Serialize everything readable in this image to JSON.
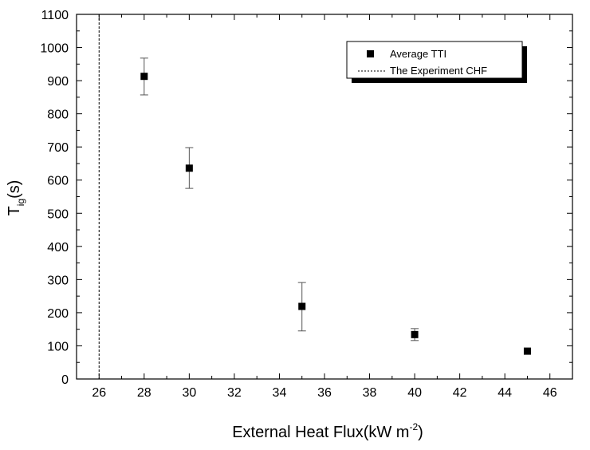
{
  "chart_data": {
    "type": "scatter",
    "xlabel": "External Heat Flux(kW m",
    "xlabel_sup": "-2",
    "xlabel_close": ")",
    "ylabel_main": "T",
    "ylabel_sub": "ig",
    "ylabel_rest": "(s)",
    "xlim": [
      25,
      47
    ],
    "ylim": [
      0,
      1100
    ],
    "x_ticks": [
      26,
      28,
      30,
      32,
      34,
      36,
      38,
      40,
      42,
      44,
      46
    ],
    "y_ticks": [
      0,
      100,
      200,
      300,
      400,
      500,
      600,
      700,
      800,
      900,
      1000,
      1100
    ],
    "grid": false,
    "legend_position": "top-right",
    "series": [
      {
        "name": "Average TTI",
        "marker": "square",
        "points": [
          {
            "x": 28,
            "y": 913,
            "err_low": 857,
            "err_high": 968
          },
          {
            "x": 30,
            "y": 636,
            "err_low": 575,
            "err_high": 698
          },
          {
            "x": 35,
            "y": 219,
            "err_low": 145,
            "err_high": 291
          },
          {
            "x": 40,
            "y": 134,
            "err_low": 116,
            "err_high": 152
          },
          {
            "x": 45,
            "y": 84,
            "err_low": 84,
            "err_high": 84
          }
        ]
      },
      {
        "name": "The Experiment CHF",
        "style": "dashed-vertical",
        "x": 26
      }
    ]
  }
}
